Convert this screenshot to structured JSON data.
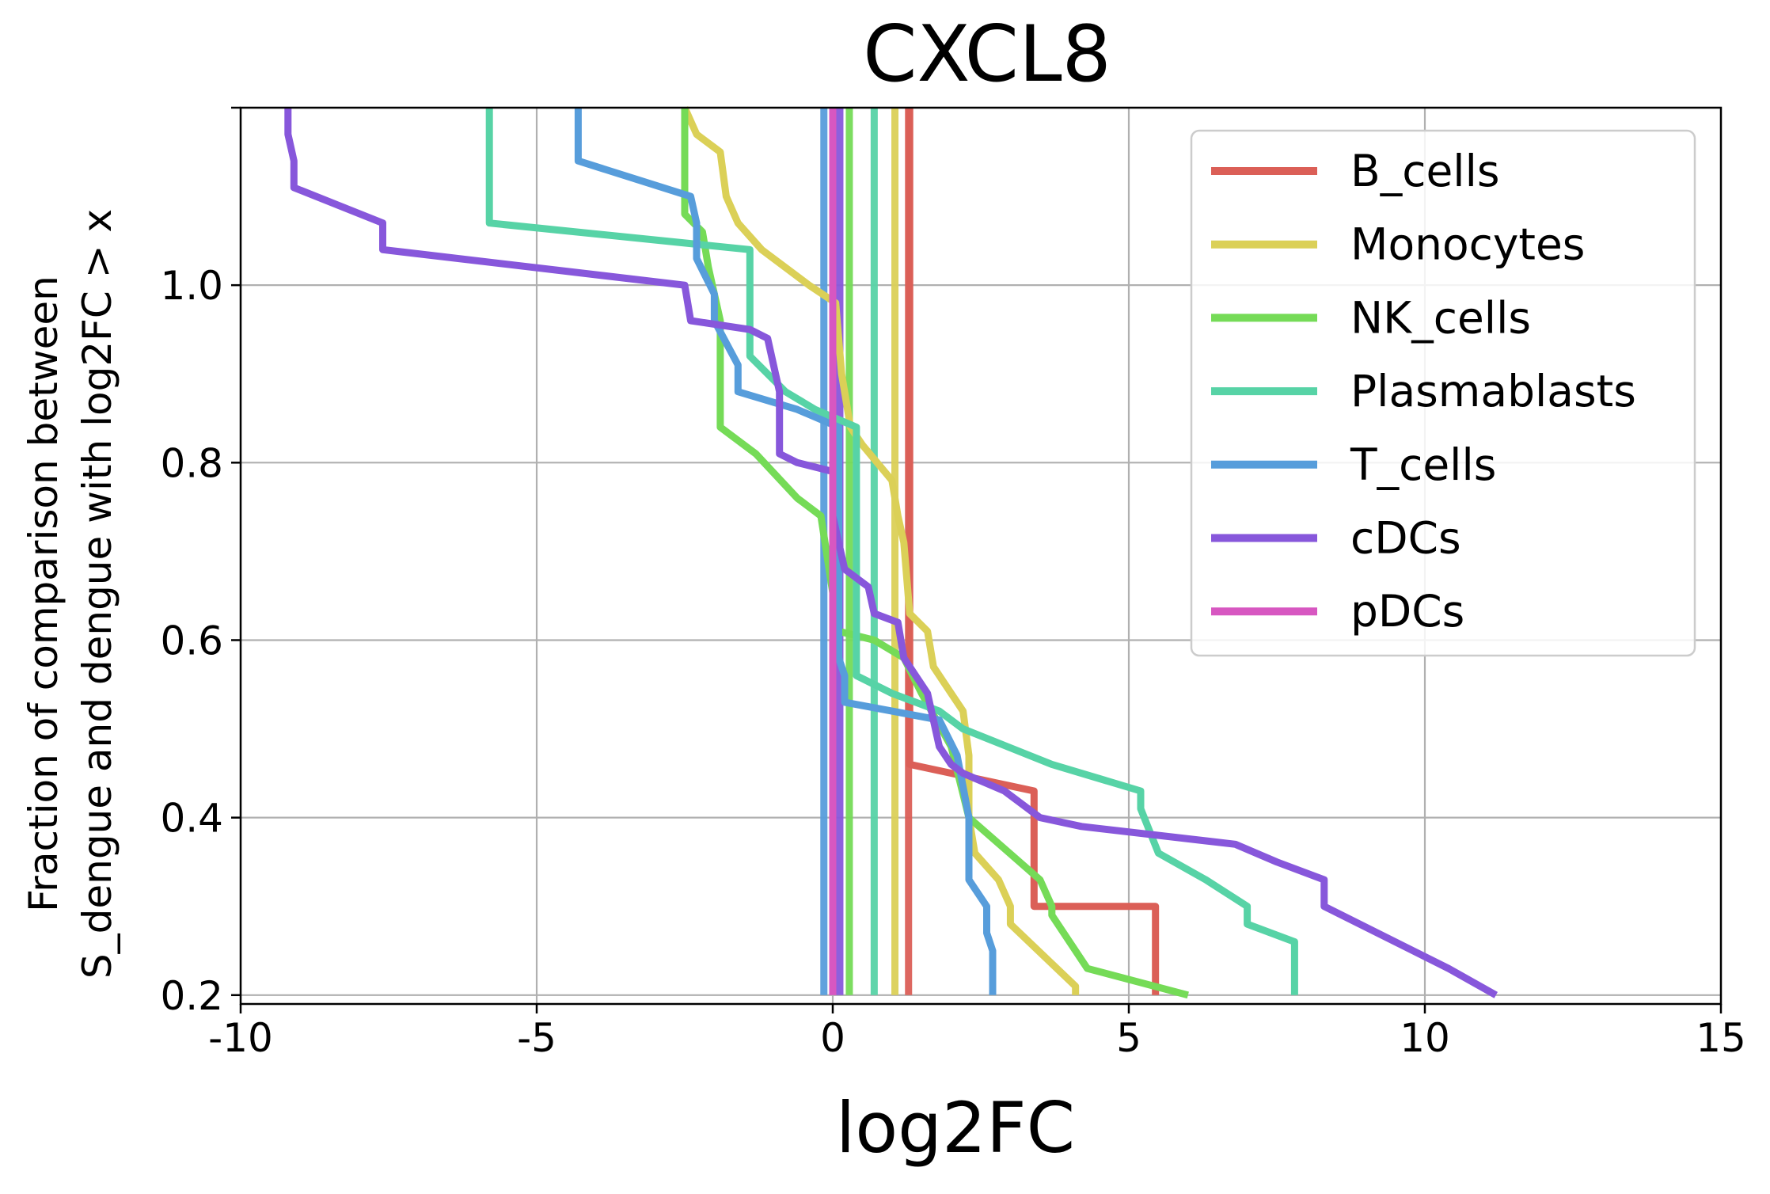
{
  "chart_data": {
    "type": "line",
    "title": "CXCL8",
    "xlabel": "log2FC",
    "ylabel_lines": [
      "Fraction of comparison between",
      "S_dengue and dengue with log2FC > x"
    ],
    "xlim": [
      -10,
      15
    ],
    "ylim": [
      0.19,
      1.2
    ],
    "xticks": [
      -10,
      -5,
      0,
      5,
      10,
      15
    ],
    "xtick_labels": [
      "-10",
      "-5",
      "0",
      "5",
      "10",
      "15"
    ],
    "yticks": [
      0.2,
      0.4,
      0.6,
      0.8,
      1.0
    ],
    "ytick_labels": [
      "0.2",
      "0.4",
      "0.6",
      "0.8",
      "1.0"
    ],
    "extra_ytick": 1.2,
    "grid": true,
    "legend_position": "top-right",
    "series": [
      {
        "name": "B_cells",
        "color": "#db5f57",
        "points": [
          [
            1.3,
            1.2
          ],
          [
            1.3,
            0.46
          ],
          [
            3.4,
            0.43
          ],
          [
            3.4,
            0.3
          ],
          [
            5.45,
            0.3
          ],
          [
            5.45,
            0.2
          ]
        ]
      },
      {
        "name": "Monocytes",
        "color": "#dbd057",
        "points": [
          [
            -2.5,
            1.2
          ],
          [
            -2.3,
            1.17
          ],
          [
            -1.9,
            1.15
          ],
          [
            -1.8,
            1.1
          ],
          [
            -1.6,
            1.07
          ],
          [
            -1.2,
            1.04
          ],
          [
            -0.4,
            1.0
          ],
          [
            0.05,
            0.98
          ],
          [
            0.15,
            0.9
          ],
          [
            0.3,
            0.84
          ],
          [
            0.4,
            0.83
          ],
          [
            0.5,
            0.82
          ],
          [
            1.0,
            0.78
          ],
          [
            1.1,
            0.74
          ],
          [
            1.2,
            0.71
          ],
          [
            1.3,
            0.63
          ],
          [
            1.6,
            0.61
          ],
          [
            1.7,
            0.57
          ],
          [
            2.0,
            0.54
          ],
          [
            2.2,
            0.52
          ],
          [
            2.3,
            0.47
          ],
          [
            2.3,
            0.4
          ],
          [
            2.4,
            0.36
          ],
          [
            2.8,
            0.33
          ],
          [
            3.0,
            0.3
          ],
          [
            3.0,
            0.28
          ],
          [
            4.1,
            0.21
          ],
          [
            4.1,
            0.2
          ]
        ]
      },
      {
        "name": "NK_cells",
        "color": "#75db57",
        "points": [
          [
            -2.5,
            1.2
          ],
          [
            -2.5,
            1.08
          ],
          [
            -2.2,
            1.06
          ],
          [
            -2.1,
            1.02
          ],
          [
            -1.9,
            0.96
          ],
          [
            -1.9,
            0.84
          ],
          [
            -1.3,
            0.81
          ],
          [
            -0.6,
            0.76
          ],
          [
            -0.2,
            0.74
          ],
          [
            0.1,
            0.61
          ],
          [
            0.7,
            0.6
          ],
          [
            1.2,
            0.58
          ],
          [
            1.5,
            0.54
          ],
          [
            2.0,
            0.48
          ],
          [
            2.3,
            0.4
          ],
          [
            3.5,
            0.33
          ],
          [
            3.7,
            0.3
          ],
          [
            3.7,
            0.29
          ],
          [
            4.3,
            0.23
          ],
          [
            6.0,
            0.2
          ]
        ]
      },
      {
        "name": "Plasmablasts",
        "color": "#57d3a6",
        "points": [
          [
            -5.8,
            1.2
          ],
          [
            -5.8,
            1.07
          ],
          [
            -1.4,
            1.04
          ],
          [
            -1.4,
            0.92
          ],
          [
            -0.8,
            0.88
          ],
          [
            -0.3,
            0.86
          ],
          [
            0.4,
            0.84
          ],
          [
            0.4,
            0.56
          ],
          [
            1.0,
            0.54
          ],
          [
            1.8,
            0.52
          ],
          [
            2.2,
            0.5
          ],
          [
            3.7,
            0.46
          ],
          [
            5.2,
            0.43
          ],
          [
            5.2,
            0.41
          ],
          [
            5.5,
            0.36
          ],
          [
            6.3,
            0.33
          ],
          [
            7.0,
            0.3
          ],
          [
            7.0,
            0.28
          ],
          [
            7.8,
            0.26
          ],
          [
            7.8,
            0.2
          ]
        ]
      },
      {
        "name": "T_cells",
        "color": "#579ddb",
        "points": [
          [
            -4.3,
            1.2
          ],
          [
            -4.3,
            1.14
          ],
          [
            -2.4,
            1.1
          ],
          [
            -2.3,
            1.07
          ],
          [
            -2.3,
            1.03
          ],
          [
            -2.0,
            0.99
          ],
          [
            -2.0,
            0.96
          ],
          [
            -1.6,
            0.91
          ],
          [
            -1.6,
            0.88
          ],
          [
            -0.6,
            0.86
          ],
          [
            0.1,
            0.84
          ],
          [
            0.1,
            0.58
          ],
          [
            0.2,
            0.56
          ],
          [
            0.2,
            0.53
          ],
          [
            1.0,
            0.52
          ],
          [
            1.8,
            0.51
          ],
          [
            2.1,
            0.47
          ],
          [
            2.3,
            0.4
          ],
          [
            2.3,
            0.33
          ],
          [
            2.6,
            0.3
          ],
          [
            2.6,
            0.27
          ],
          [
            2.7,
            0.25
          ],
          [
            2.7,
            0.2
          ]
        ]
      },
      {
        "name": "cDCs",
        "color": "#8757db",
        "points": [
          [
            -9.2,
            1.2
          ],
          [
            -9.2,
            1.17
          ],
          [
            -9.1,
            1.14
          ],
          [
            -9.1,
            1.11
          ],
          [
            -7.6,
            1.07
          ],
          [
            -7.6,
            1.04
          ],
          [
            -2.5,
            1.0
          ],
          [
            -2.4,
            0.96
          ],
          [
            -1.4,
            0.95
          ],
          [
            -1.1,
            0.94
          ],
          [
            -0.9,
            0.88
          ],
          [
            -0.9,
            0.81
          ],
          [
            -0.6,
            0.8
          ],
          [
            0,
            0.79
          ],
          [
            0,
            0.74
          ],
          [
            0.2,
            0.68
          ],
          [
            0.6,
            0.66
          ],
          [
            0.7,
            0.63
          ],
          [
            1.1,
            0.62
          ],
          [
            1.2,
            0.58
          ],
          [
            1.4,
            0.56
          ],
          [
            1.6,
            0.54
          ],
          [
            1.8,
            0.48
          ],
          [
            2.0,
            0.46
          ],
          [
            2.2,
            0.45
          ],
          [
            2.9,
            0.43
          ],
          [
            3.5,
            0.4
          ],
          [
            4.2,
            0.39
          ],
          [
            6.8,
            0.37
          ],
          [
            7.5,
            0.35
          ],
          [
            8.3,
            0.33
          ],
          [
            8.3,
            0.3
          ],
          [
            10.4,
            0.23
          ],
          [
            11.2,
            0.2
          ]
        ]
      },
      {
        "name": "pDCs",
        "color": "#d757c1",
        "points": [
          [
            0,
            1.2
          ],
          [
            0,
            0.2
          ]
        ]
      }
    ],
    "reference_lines": [
      {
        "color": "#579ddb",
        "x": -0.15
      },
      {
        "color": "#d757c1",
        "x": 0.0
      },
      {
        "color": "#8757db",
        "x": 0.12
      },
      {
        "color": "#75db57",
        "x": 0.28
      },
      {
        "color": "#57d3a6",
        "x": 0.7
      },
      {
        "color": "#dbd057",
        "x": 1.05
      },
      {
        "color": "#db5f57",
        "x": 1.28
      }
    ]
  }
}
